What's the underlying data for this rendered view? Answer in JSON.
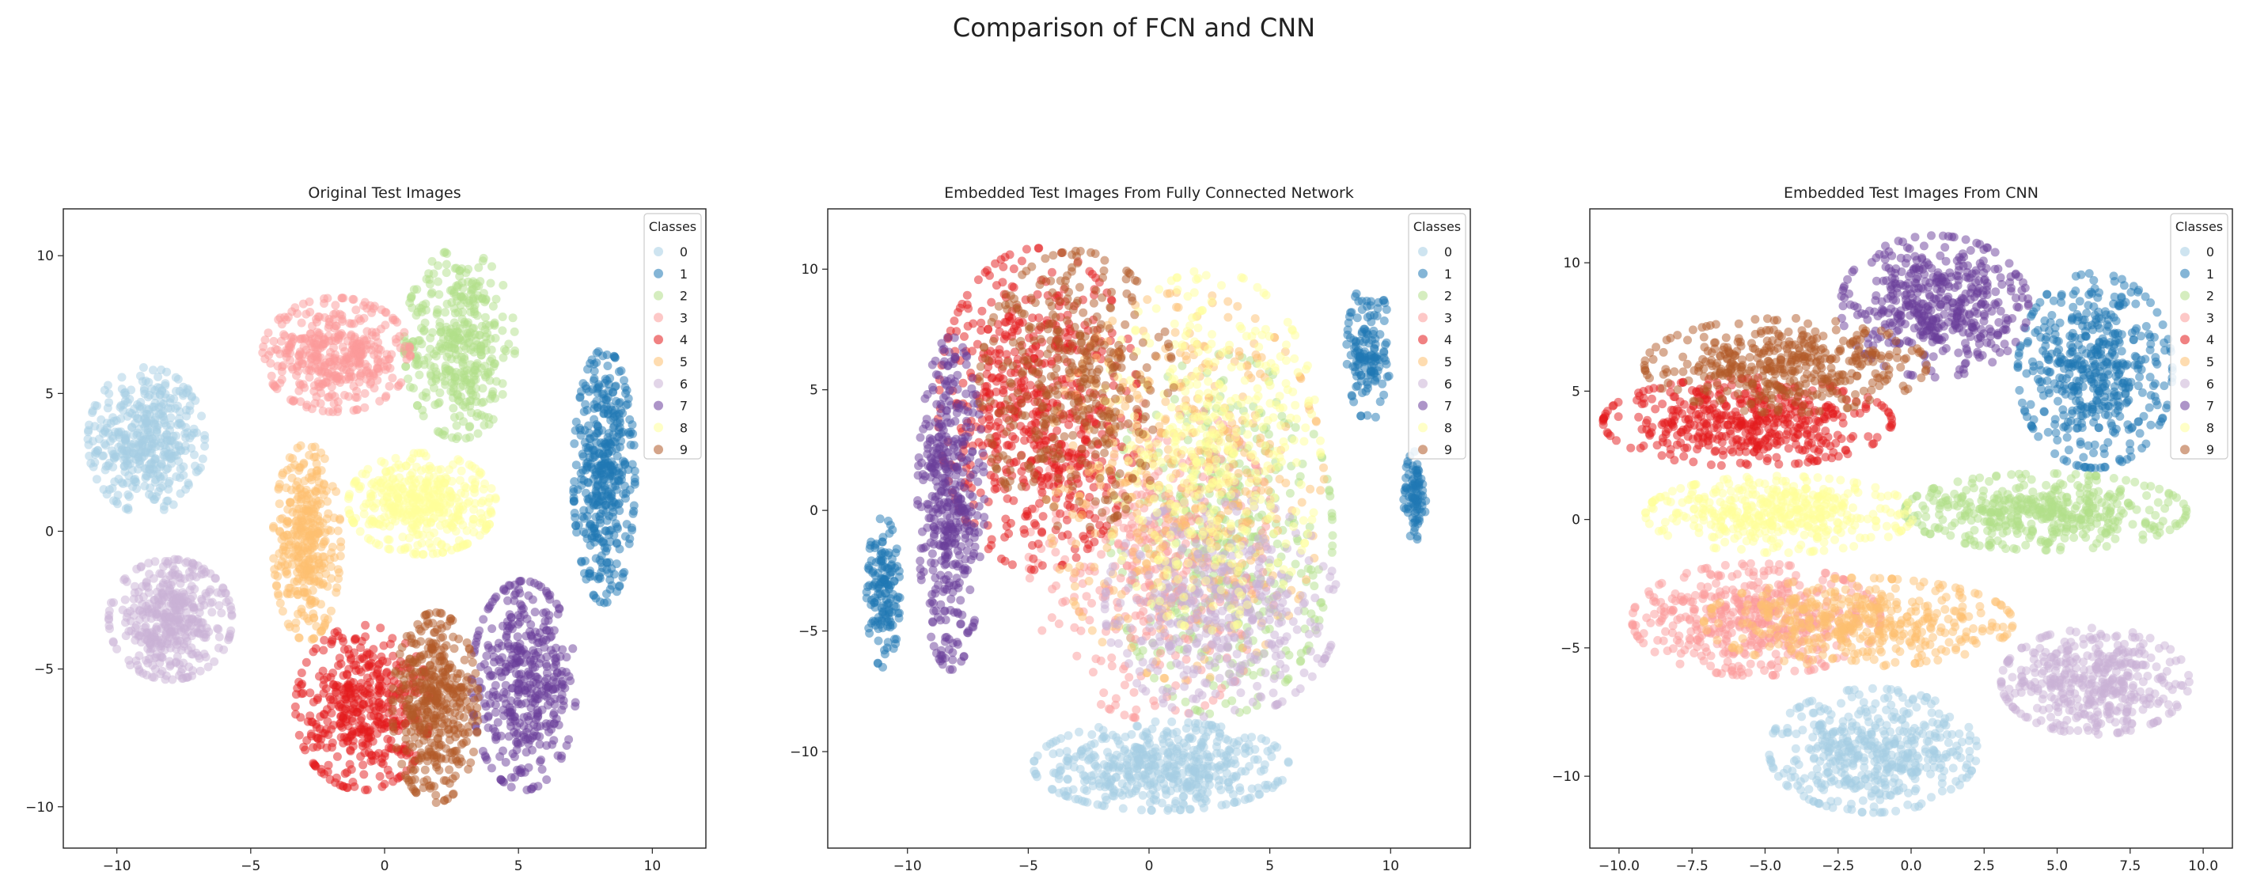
{
  "figure": {
    "suptitle": "Comparison of FCN and CNN"
  },
  "palette": [
    "#a6cee3",
    "#1f78b4",
    "#b2df8a",
    "#fb9a99",
    "#e31a1c",
    "#fdbf6f",
    "#cab2d6",
    "#6a3d9a",
    "#ffff99",
    "#b15928"
  ],
  "chart_data": [
    {
      "type": "scatter",
      "title": "Original Test Images",
      "xlabel": "",
      "ylabel": "",
      "xlim": [
        -12,
        12
      ],
      "ylim": [
        -11.5,
        11.7
      ],
      "xticks": [
        -10,
        -5,
        0,
        5,
        10
      ],
      "yticks": [
        -10,
        -5,
        0,
        5,
        10
      ],
      "xtick_labels": [
        "−10",
        "−5",
        "0",
        "5",
        "10"
      ],
      "ytick_labels": [
        "−10",
        "−5",
        "0",
        "5",
        "10"
      ],
      "grid": false,
      "legend": {
        "title": "Classes",
        "placement": "top-right",
        "entries": [
          "0",
          "1",
          "2",
          "3",
          "4",
          "5",
          "6",
          "7",
          "8",
          "9"
        ]
      },
      "series": [
        {
          "name": "0",
          "clusters": [
            {
              "cx": -8.9,
              "cy": 3.3,
              "rx": 1.9,
              "ry": 2.3,
              "n": 420
            }
          ]
        },
        {
          "name": "1",
          "clusters": [
            {
              "cx": 8.2,
              "cy": 2.0,
              "rx": 1.0,
              "ry": 4.0,
              "n": 420
            }
          ]
        },
        {
          "name": "2",
          "clusters": [
            {
              "cx": 2.8,
              "cy": 6.8,
              "rx": 1.8,
              "ry": 3.0,
              "n": 400
            }
          ]
        },
        {
          "name": "3",
          "clusters": [
            {
              "cx": -1.8,
              "cy": 6.4,
              "rx": 2.4,
              "ry": 1.8,
              "n": 420
            }
          ]
        },
        {
          "name": "4",
          "clusters": [
            {
              "cx": -0.8,
              "cy": -6.4,
              "rx": 2.2,
              "ry": 2.6,
              "n": 440
            }
          ]
        },
        {
          "name": "5",
          "clusters": [
            {
              "cx": -2.9,
              "cy": -0.4,
              "rx": 1.1,
              "ry": 3.1,
              "n": 360
            }
          ]
        },
        {
          "name": "6",
          "clusters": [
            {
              "cx": -8.0,
              "cy": -3.2,
              "rx": 2.0,
              "ry": 1.9,
              "n": 420
            }
          ]
        },
        {
          "name": "7",
          "clusters": [
            {
              "cx": 5.2,
              "cy": -5.6,
              "rx": 1.7,
              "ry": 3.3,
              "n": 420
            }
          ]
        },
        {
          "name": "8",
          "clusters": [
            {
              "cx": 1.4,
              "cy": 1.0,
              "rx": 2.4,
              "ry": 1.6,
              "n": 420
            }
          ]
        },
        {
          "name": "9",
          "clusters": [
            {
              "cx": 1.9,
              "cy": -6.4,
              "rx": 1.4,
              "ry": 3.0,
              "n": 420
            }
          ]
        }
      ]
    },
    {
      "type": "scatter",
      "title": "Embedded Test Images From Fully Connected Network",
      "xlabel": "",
      "ylabel": "",
      "xlim": [
        -13.3,
        13.3
      ],
      "ylim": [
        -14.0,
        12.5
      ],
      "xticks": [
        -10,
        -5,
        0,
        5,
        10
      ],
      "yticks": [
        -10,
        -5,
        0,
        5,
        10
      ],
      "xtick_labels": [
        "−10",
        "−5",
        "0",
        "5",
        "10"
      ],
      "ytick_labels": [
        "−10",
        "−5",
        "0",
        "5",
        "10"
      ],
      "grid": false,
      "legend": {
        "title": "Classes",
        "placement": "top-right",
        "entries": [
          "0",
          "1",
          "2",
          "3",
          "4",
          "5",
          "6",
          "7",
          "8",
          "9"
        ]
      },
      "series": [
        {
          "name": "0",
          "clusters": [
            {
              "cx": 0.5,
              "cy": -10.6,
              "rx": 4.6,
              "ry": 1.6,
              "n": 520
            }
          ]
        },
        {
          "name": "1",
          "clusters": [
            {
              "cx": -11.0,
              "cy": -3.4,
              "rx": 0.6,
              "ry": 2.7,
              "n": 150
            },
            {
              "cx": 9.1,
              "cy": 6.6,
              "rx": 0.8,
              "ry": 2.5,
              "n": 140
            },
            {
              "cx": 11.0,
              "cy": 0.6,
              "rx": 0.4,
              "ry": 1.6,
              "n": 90
            }
          ]
        },
        {
          "name": "2",
          "clusters": [
            {
              "cx": 3.0,
              "cy": -1.0,
              "rx": 4.0,
              "ry": 6.5,
              "n": 430
            }
          ]
        },
        {
          "name": "3",
          "clusters": [
            {
              "cx": 0.2,
              "cy": -2.0,
              "rx": 4.5,
              "ry": 5.8,
              "n": 420
            }
          ]
        },
        {
          "name": "4",
          "clusters": [
            {
              "cx": -4.6,
              "cy": 4.2,
              "rx": 3.6,
              "ry": 5.8,
              "n": 620
            }
          ]
        },
        {
          "name": "5",
          "clusters": [
            {
              "cx": 1.5,
              "cy": 1.0,
              "rx": 5.0,
              "ry": 7.0,
              "n": 420
            }
          ]
        },
        {
          "name": "6",
          "clusters": [
            {
              "cx": 3.0,
              "cy": -4.0,
              "rx": 4.2,
              "ry": 4.0,
              "n": 420
            }
          ]
        },
        {
          "name": "7",
          "clusters": [
            {
              "cx": -8.2,
              "cy": 0.3,
              "rx": 1.2,
              "ry": 6.0,
              "n": 440
            }
          ]
        },
        {
          "name": "8",
          "clusters": [
            {
              "cx": 2.5,
              "cy": 2.5,
              "rx": 4.0,
              "ry": 6.5,
              "n": 420
            }
          ]
        },
        {
          "name": "9",
          "clusters": [
            {
              "cx": -3.0,
              "cy": 5.0,
              "rx": 3.5,
              "ry": 5.0,
              "n": 380
            }
          ]
        }
      ]
    },
    {
      "type": "scatter",
      "title": "Embedded Test Images From CNN",
      "xlabel": "",
      "ylabel": "",
      "xlim": [
        -11.0,
        11.0
      ],
      "ylim": [
        -12.8,
        12.1
      ],
      "xticks": [
        -10,
        -7.5,
        -5,
        -2.5,
        0,
        2.5,
        5,
        7.5,
        10
      ],
      "yticks": [
        -10,
        -5,
        0,
        5,
        10
      ],
      "xtick_labels": [
        "−10.0",
        "−7.5",
        "−5.0",
        "−2.5",
        "0.0",
        "2.5",
        "5.0",
        "7.5",
        "10.0"
      ],
      "ytick_labels": [
        "−10",
        "−5",
        "0",
        "5",
        "10"
      ],
      "grid": false,
      "legend": {
        "title": "Classes",
        "placement": "top-right",
        "entries": [
          "0",
          "1",
          "2",
          "3",
          "4",
          "5",
          "6",
          "7",
          "8",
          "9"
        ]
      },
      "series": [
        {
          "name": "0",
          "clusters": [
            {
              "cx": -1.3,
              "cy": -9.0,
              "rx": 3.1,
              "ry": 2.1,
              "n": 480
            }
          ]
        },
        {
          "name": "1",
          "clusters": [
            {
              "cx": 6.3,
              "cy": 5.8,
              "rx": 2.3,
              "ry": 3.3,
              "n": 480
            }
          ]
        },
        {
          "name": "2",
          "clusters": [
            {
              "cx": 4.6,
              "cy": 0.3,
              "rx": 4.2,
              "ry": 1.3,
              "n": 460
            }
          ]
        },
        {
          "name": "3",
          "clusters": [
            {
              "cx": -5.3,
              "cy": -3.9,
              "rx": 3.7,
              "ry": 1.9,
              "n": 480
            }
          ]
        },
        {
          "name": "4",
          "clusters": [
            {
              "cx": -5.6,
              "cy": 3.8,
              "rx": 4.3,
              "ry": 1.5,
              "n": 480
            }
          ]
        },
        {
          "name": "5",
          "clusters": [
            {
              "cx": -1.8,
              "cy": -4.0,
              "rx": 4.6,
              "ry": 1.5,
              "n": 440
            }
          ]
        },
        {
          "name": "6",
          "clusters": [
            {
              "cx": 6.3,
              "cy": -6.3,
              "rx": 2.8,
              "ry": 1.8,
              "n": 440
            }
          ]
        },
        {
          "name": "7",
          "clusters": [
            {
              "cx": 0.8,
              "cy": 8.3,
              "rx": 2.8,
              "ry": 2.4,
              "n": 460
            }
          ]
        },
        {
          "name": "8",
          "clusters": [
            {
              "cx": -4.5,
              "cy": 0.2,
              "rx": 4.0,
              "ry": 1.3,
              "n": 440
            }
          ]
        },
        {
          "name": "9",
          "clusters": [
            {
              "cx": -4.3,
              "cy": 6.0,
              "rx": 4.2,
              "ry": 1.6,
              "n": 420
            }
          ]
        }
      ]
    }
  ]
}
